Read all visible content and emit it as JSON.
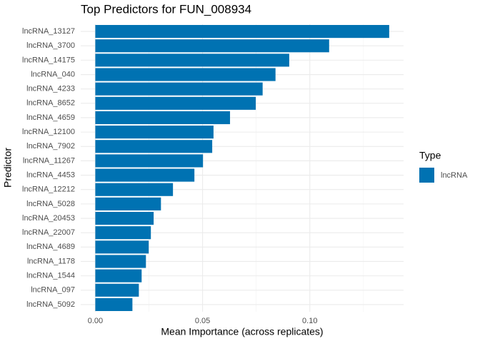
{
  "chart_data": {
    "type": "barh",
    "title": "Top Predictors for FUN_008934",
    "x_label": "Mean Importance (across replicates)",
    "y_label": "Predictor",
    "categories": [
      "lncRNA_13127",
      "lncRNA_3700",
      "lncRNA_14175",
      "lncRNA_040",
      "lncRNA_4233",
      "lncRNA_8652",
      "lncRNA_4659",
      "lncRNA_12100",
      "lncRNA_7902",
      "lncRNA_11267",
      "lncRNA_4453",
      "lncRNA_12212",
      "lncRNA_5028",
      "lncRNA_20453",
      "lncRNA_22007",
      "lncRNA_4689",
      "lncRNA_1178",
      "lncRNA_1544",
      "lncRNA_097",
      "lncRNA_5092"
    ],
    "series": [
      {
        "name": "lncRNA",
        "color": "#0072b2",
        "values": [
          0.137,
          0.109,
          0.0904,
          0.084,
          0.078,
          0.0748,
          0.0628,
          0.0551,
          0.0545,
          0.0502,
          0.0462,
          0.0362,
          0.0306,
          0.0272,
          0.0259,
          0.0249,
          0.0236,
          0.0216,
          0.0203,
          0.0173
        ]
      }
    ],
    "legend_title": "Type",
    "legend_position": "right",
    "xlim": [
      -0.0068,
      0.1437
    ],
    "xticks": [
      {
        "value": 0,
        "label": "0.00"
      },
      {
        "value": 0.05,
        "label": "0.05"
      },
      {
        "value": 0.1,
        "label": "0.10"
      }
    ],
    "grid": true,
    "minor_grid": true
  }
}
